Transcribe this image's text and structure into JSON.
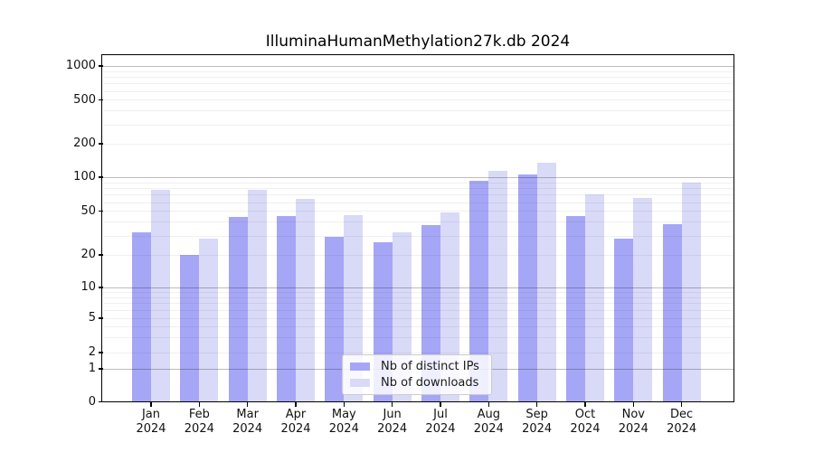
{
  "title": "IlluminaHumanMethylation27k.db 2024",
  "colors": {
    "distinct_ips_bar": "#a6a6f6",
    "downloads_bar": "#d9d9f8",
    "axis": "#000000",
    "major_grid": "rgba(0,0,0,0.26)",
    "minor_grid": "rgba(0,0,0,0.06)"
  },
  "legend": {
    "items": [
      {
        "label": "Nb of distinct IPs",
        "color": "#a6a6f6"
      },
      {
        "label": "Nb of downloads",
        "color": "#d9d9f8"
      }
    ]
  },
  "chart_data": {
    "type": "bar",
    "title": "IlluminaHumanMethylation27k.db 2024",
    "categories": [
      "Jan 2024",
      "Feb 2024",
      "Mar 2024",
      "Apr 2024",
      "May 2024",
      "Jun 2024",
      "Jul 2024",
      "Aug 2024",
      "Sep 2024",
      "Oct 2024",
      "Nov 2024",
      "Dec 2024"
    ],
    "x_tick_months": [
      "Jan",
      "Feb",
      "Mar",
      "Apr",
      "May",
      "Jun",
      "Jul",
      "Aug",
      "Sep",
      "Oct",
      "Nov",
      "Dec"
    ],
    "x_tick_year": "2024",
    "series": [
      {
        "name": "Nb of distinct IPs",
        "color": "#a6a6f6",
        "values": [
          32,
          20,
          44,
          45,
          29,
          26,
          37,
          92,
          105,
          45,
          28,
          38
        ]
      },
      {
        "name": "Nb of downloads",
        "color": "#d9d9f8",
        "values": [
          77,
          28,
          77,
          64,
          46,
          32,
          49,
          115,
          136,
          71,
          65,
          90
        ]
      }
    ],
    "xlabel": "",
    "ylabel": "",
    "y_axis": {
      "scale": "log-like (0 included)",
      "ticks": [
        0,
        1,
        2,
        5,
        10,
        20,
        50,
        100,
        200,
        500,
        1000
      ],
      "range": [
        0,
        1000
      ]
    },
    "grid": true,
    "legend_position": "bottom-center"
  }
}
